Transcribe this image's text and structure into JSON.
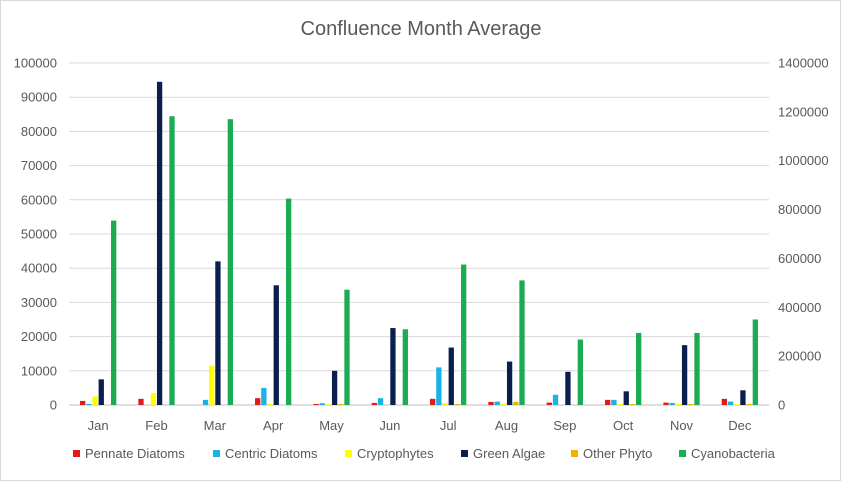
{
  "chart_data": {
    "type": "bar",
    "title": "Confluence Month Average",
    "categories": [
      "Jan",
      "Feb",
      "Mar",
      "Apr",
      "May",
      "Jun",
      "Jul",
      "Aug",
      "Sep",
      "Oct",
      "Nov",
      "Dec"
    ],
    "y_left": {
      "min": 0,
      "max": 100000,
      "step": 10000,
      "ticks": [
        "0",
        "10000",
        "20000",
        "30000",
        "40000",
        "50000",
        "60000",
        "70000",
        "80000",
        "90000",
        "100000"
      ]
    },
    "y_right": {
      "min": 0,
      "max": 1400000,
      "step": 200000,
      "ticks": [
        "0",
        "200000",
        "400000",
        "600000",
        "800000",
        "1000000",
        "1200000",
        "1400000"
      ]
    },
    "grid": true,
    "legend_position": "bottom",
    "series": [
      {
        "name": "Pennate Diatoms",
        "color": "#e31a1c",
        "axis": "left",
        "values": [
          1200,
          1800,
          0,
          2000,
          300,
          600,
          1800,
          900,
          700,
          1500,
          700,
          1800
        ]
      },
      {
        "name": "Centric Diatoms",
        "color": "#1ab2e6",
        "axis": "left",
        "values": [
          300,
          0,
          1500,
          5000,
          500,
          2000,
          11000,
          1000,
          3000,
          1500,
          600,
          1000
        ]
      },
      {
        "name": "Cryptophytes",
        "color": "#ffff00",
        "axis": "left",
        "values": [
          2500,
          3500,
          11500,
          400,
          200,
          0,
          600,
          400,
          0,
          300,
          400,
          200
        ]
      },
      {
        "name": "Green Algae",
        "color": "#0b1f4f",
        "axis": "left",
        "values": [
          7500,
          94500,
          42000,
          35000,
          10000,
          22500,
          16800,
          12700,
          9700,
          4000,
          17500,
          4300
        ]
      },
      {
        "name": "Other Phyto",
        "color": "#f0b400",
        "axis": "left",
        "values": [
          0,
          0,
          0,
          0,
          300,
          0,
          300,
          900,
          0,
          300,
          300,
          300
        ]
      },
      {
        "name": "Cyanobacteria",
        "color": "#1aab53",
        "axis": "right",
        "values": [
          755000,
          1182000,
          1170000,
          845000,
          472000,
          310000,
          575000,
          510000,
          268000,
          295000,
          295000,
          350000
        ]
      }
    ]
  }
}
